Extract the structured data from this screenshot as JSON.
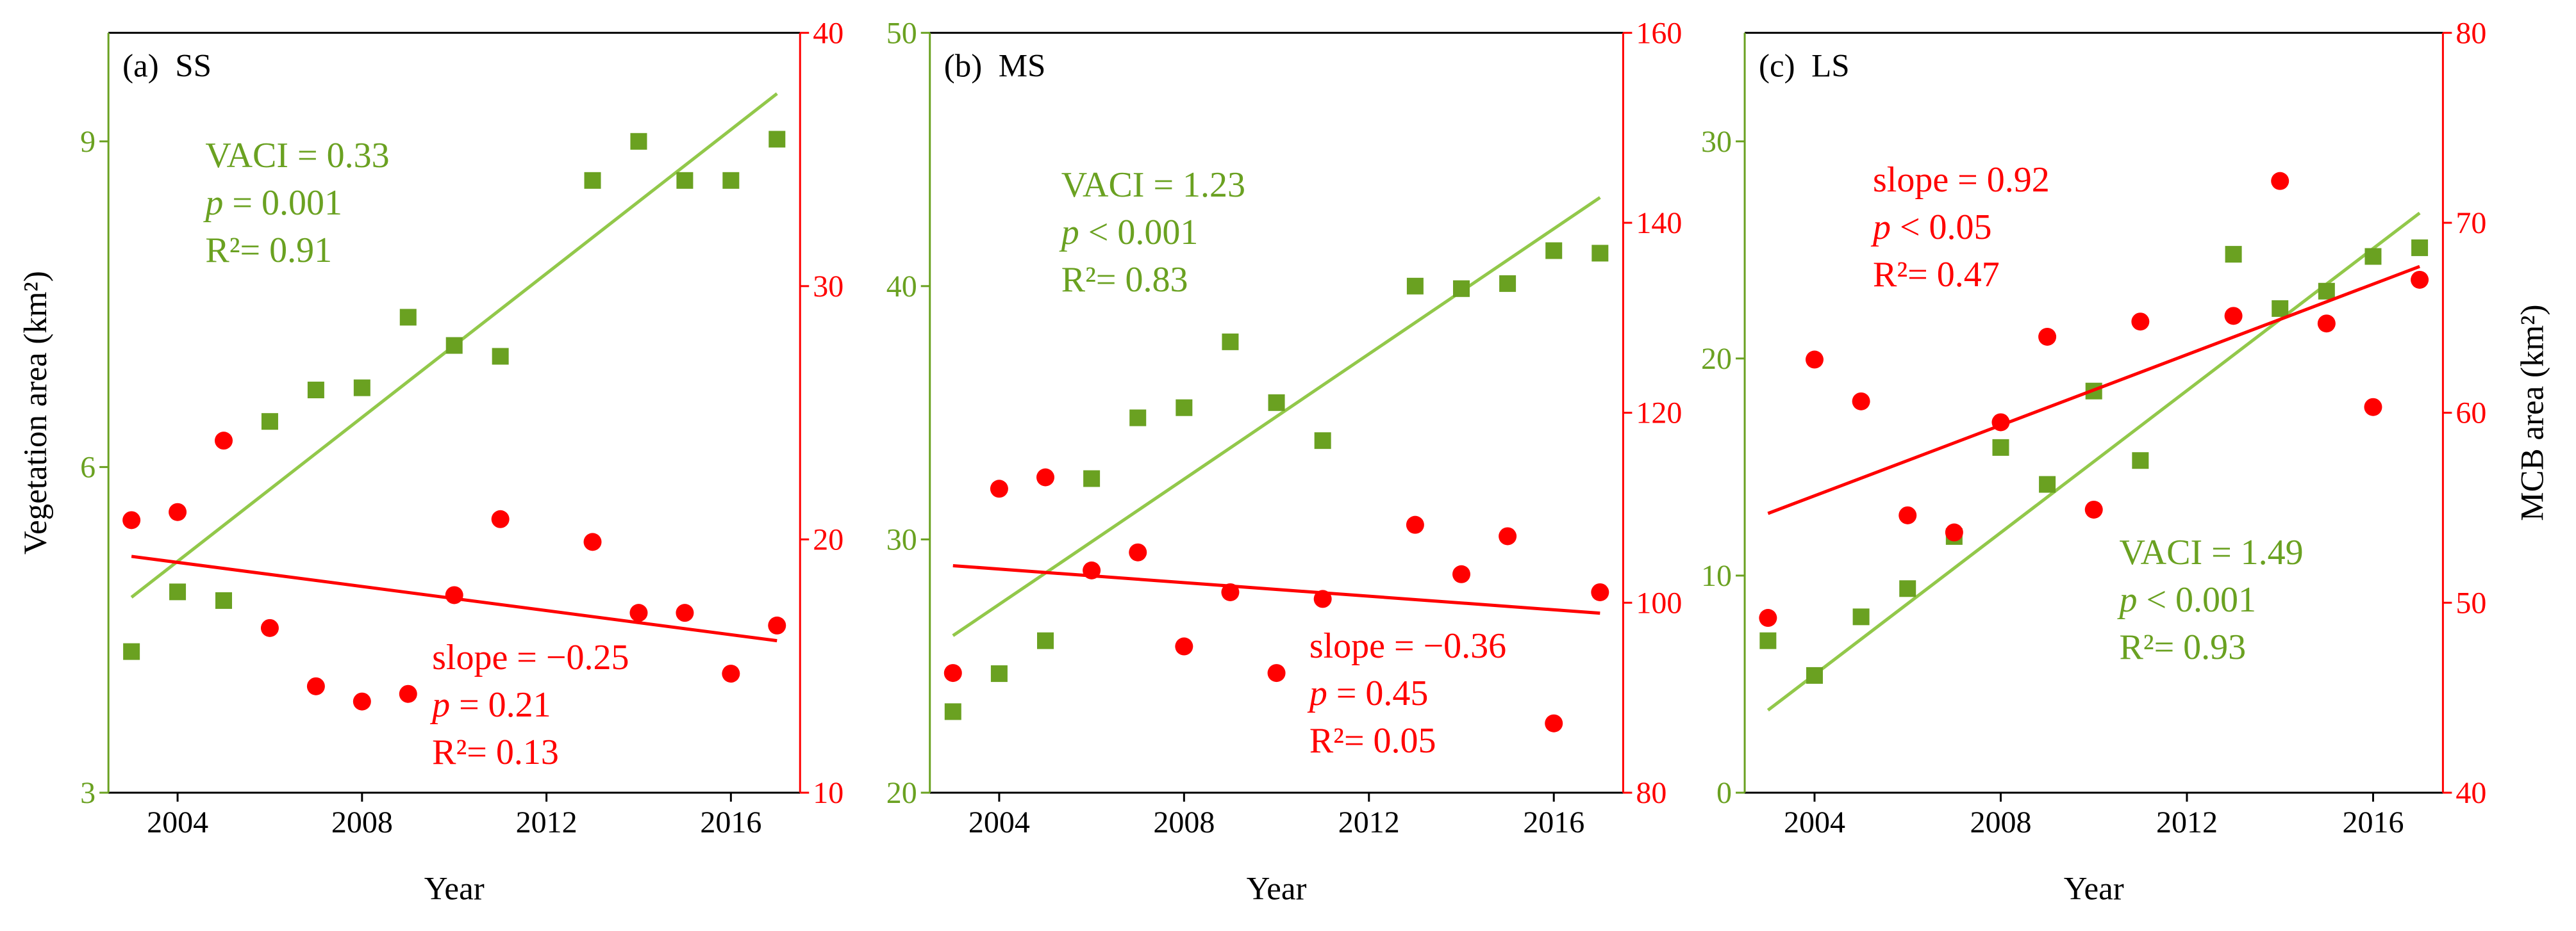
{
  "chart_data": [
    {
      "type": "scatter",
      "title": "(a)  SS",
      "xlabel": "Year",
      "ylabel": "Vegetation area (km²)",
      "x": [
        2003,
        2004,
        2005,
        2006,
        2007,
        2008,
        2009,
        2010,
        2011,
        2013,
        2014,
        2015,
        2016,
        2017
      ],
      "xlim": [
        2002.5,
        2017.5
      ],
      "xticks": [
        2004,
        2008,
        2012,
        2016
      ],
      "ylim": [
        3,
        10
      ],
      "yticks": [
        3,
        6,
        9
      ],
      "y2lim": [
        10,
        40
      ],
      "y2ticks": [
        10,
        20,
        30,
        40
      ],
      "series": [
        {
          "color": "#6aa121",
          "marker": "square",
          "values": [
            4.3,
            4.85,
            4.77,
            6.42,
            6.71,
            6.73,
            7.38,
            7.12,
            7.02,
            8.64,
            9.0,
            8.64,
            8.64,
            9.02
          ],
          "trend": {
            "x": [
              2003,
              2017
            ],
            "values": [
              4.8,
              9.44
            ],
            "color": "#92c84a"
          },
          "annotation": [
            "VACI = 0.33",
            "p = 0.001",
            "R²= 0.91"
          ]
        },
        {
          "color": "#ff0000",
          "marker": "circle",
          "axis": "y2",
          "values": [
            20.76,
            21.08,
            23.9,
            16.5,
            14.2,
            13.6,
            13.9,
            17.8,
            20.8,
            19.9,
            17.1,
            17.1,
            14.7,
            16.6
          ],
          "trend": {
            "x": [
              2003,
              2017
            ],
            "values": [
              19.33,
              16.0
            ],
            "color": "#ff0000"
          },
          "annotation": [
            "slope = −0.25",
            "p = 0.21",
            "R²= 0.13"
          ]
        }
      ]
    },
    {
      "type": "scatter",
      "title": "(b)  MS",
      "xlabel": "Year",
      "x": [
        2003,
        2004,
        2005,
        2006,
        2007,
        2008,
        2009,
        2010,
        2011,
        2013,
        2014,
        2015,
        2016,
        2017
      ],
      "xlim": [
        2002.5,
        2017.5
      ],
      "xticks": [
        2004,
        2008,
        2012,
        2016
      ],
      "ylim": [
        20,
        50
      ],
      "yticks": [
        20,
        30,
        40,
        50
      ],
      "y2lim": [
        80,
        160
      ],
      "y2ticks": [
        80,
        100,
        120,
        140,
        160
      ],
      "series": [
        {
          "color": "#6aa121",
          "marker": "square",
          "values": [
            23.2,
            24.7,
            26.0,
            32.4,
            34.8,
            35.2,
            37.8,
            35.4,
            33.9,
            40.0,
            39.9,
            40.1,
            41.4,
            41.3
          ],
          "trend": {
            "x": [
              2003,
              2017
            ],
            "values": [
              26.2,
              43.5
            ],
            "color": "#92c84a"
          },
          "annotation": [
            "VACI = 1.23",
            "p < 0.001",
            "R²= 0.83"
          ]
        },
        {
          "color": "#ff0000",
          "marker": "circle",
          "axis": "y2",
          "values": [
            92.6,
            112.0,
            113.2,
            103.4,
            105.3,
            95.4,
            101.1,
            92.6,
            100.4,
            108.2,
            103.0,
            107.0,
            87.3,
            101.1
          ],
          "trend": {
            "x": [
              2003,
              2017
            ],
            "values": [
              103.9,
              98.9
            ],
            "color": "#ff0000"
          },
          "annotation": [
            "slope = −0.36",
            "p = 0.45",
            "R²= 0.05"
          ]
        }
      ]
    },
    {
      "type": "scatter",
      "title": "(c)  LS",
      "xlabel": "Year",
      "y2label": "MCB area (km²)",
      "x": [
        2003,
        2004,
        2005,
        2006,
        2007,
        2008,
        2009,
        2010,
        2011,
        2013,
        2014,
        2015,
        2016,
        2017
      ],
      "xlim": [
        2002.5,
        2017.5
      ],
      "xticks": [
        2004,
        2008,
        2012,
        2016
      ],
      "ylim": [
        0,
        35
      ],
      "yticks": [
        0,
        10,
        20,
        30
      ],
      "y2lim": [
        40,
        80
      ],
      "y2ticks": [
        40,
        50,
        60,
        70,
        80
      ],
      "series": [
        {
          "color": "#6aa121",
          "marker": "square",
          "values": [
            7.0,
            5.4,
            8.1,
            9.4,
            11.8,
            15.9,
            14.2,
            18.5,
            15.3,
            24.8,
            22.3,
            23.1,
            24.7,
            25.1
          ],
          "trend": {
            "x": [
              2003,
              2017
            ],
            "values": [
              3.8,
              26.7
            ],
            "color": "#92c84a"
          },
          "annotation": [
            "VACI = 1.49",
            "p < 0.001",
            "R²= 0.93"
          ]
        },
        {
          "color": "#ff0000",
          "marker": "circle",
          "axis": "y2",
          "values": [
            49.2,
            62.8,
            60.6,
            54.6,
            53.7,
            59.5,
            64.0,
            54.9,
            64.8,
            65.1,
            72.2,
            64.7,
            60.3,
            67.0
          ],
          "trend": {
            "x": [
              2003,
              2017
            ],
            "values": [
              54.7,
              67.7
            ],
            "color": "#ff0000"
          },
          "annotation": [
            "slope = 0.92",
            "p < 0.05",
            "R²= 0.47"
          ]
        }
      ]
    }
  ]
}
